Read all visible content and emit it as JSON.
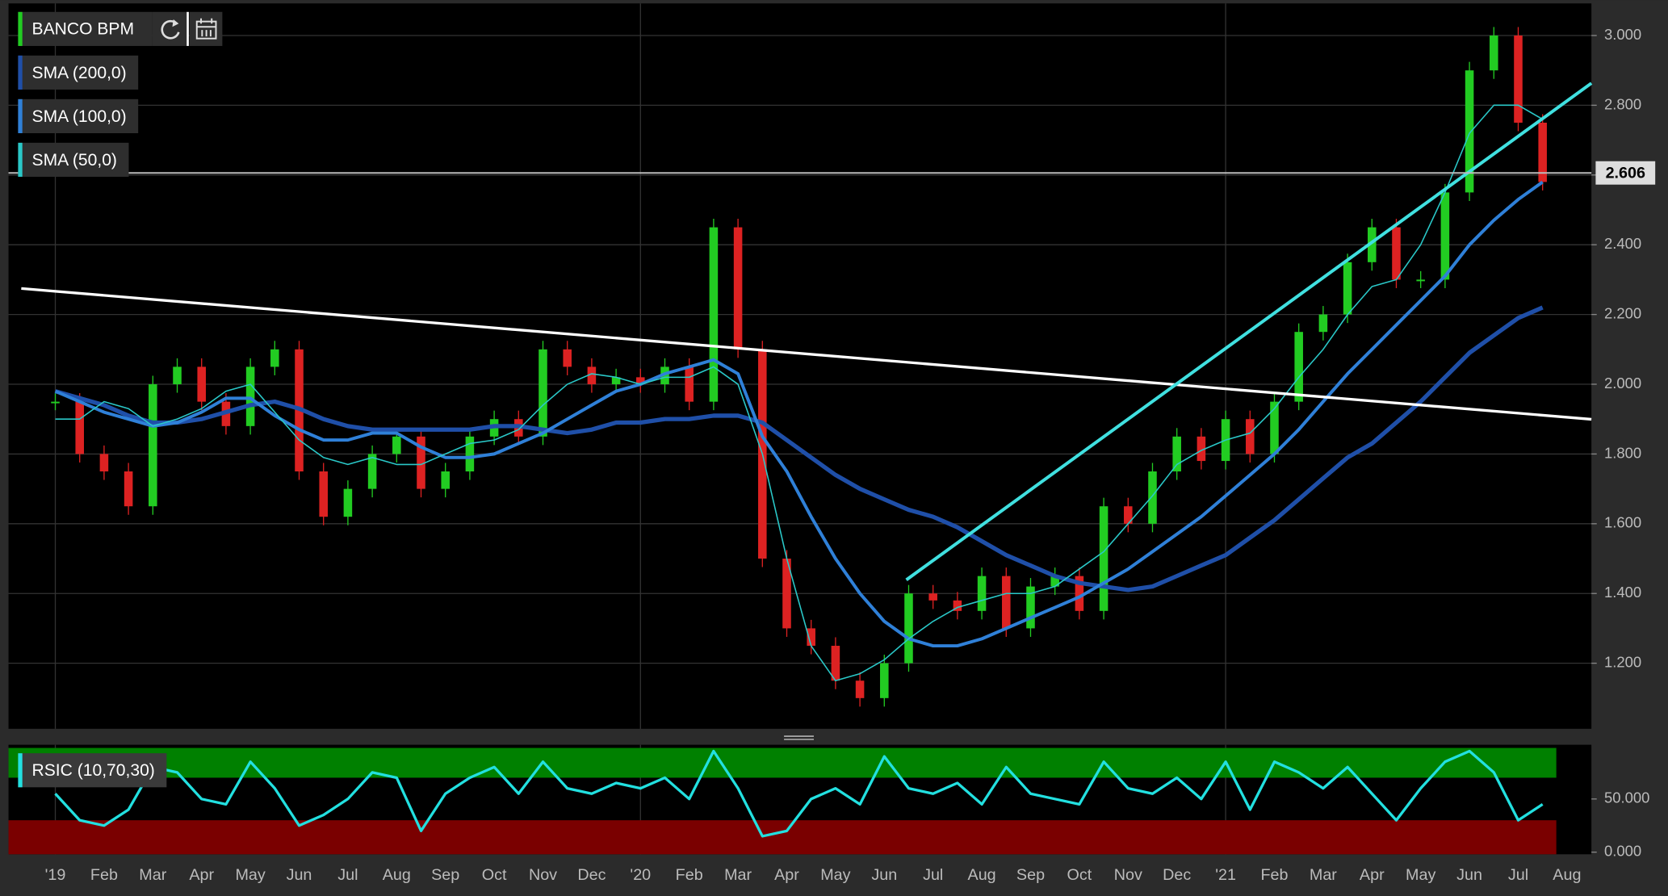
{
  "chart_data": [
    {
      "type": "candlestick",
      "title": "BANCO BPM",
      "categories": [
        "'19",
        null,
        "Feb",
        null,
        "Mar",
        null,
        "Apr",
        null,
        "May",
        null,
        "Jun",
        null,
        "Jul",
        null,
        "Aug",
        null,
        "Sep",
        null,
        "Oct",
        null,
        "Nov",
        null,
        "Dec",
        null,
        "'20",
        null,
        "Feb",
        null,
        "Mar",
        null,
        "Apr",
        null,
        "May",
        null,
        "Jun",
        null,
        "Jul",
        null,
        "Aug",
        null,
        "Sep",
        null,
        "Oct",
        null,
        "Nov",
        null,
        "Dec",
        null,
        "'21",
        null,
        "Feb",
        null,
        "Mar",
        null,
        "Apr",
        null,
        "May",
        null,
        "Jun",
        null,
        "Jul",
        null,
        "Aug"
      ],
      "series": [
        {
          "name": "BANCO BPM",
          "color": "#22cc22",
          "down_color": "#dd2222",
          "values": [
            1.95,
            1.8,
            1.75,
            1.65,
            2.0,
            2.05,
            1.95,
            1.88,
            2.05,
            2.1,
            1.75,
            1.62,
            1.7,
            1.8,
            1.85,
            1.7,
            1.75,
            1.85,
            1.9,
            1.85,
            2.1,
            2.05,
            2.0,
            2.02,
            2.0,
            2.05,
            1.95,
            2.45,
            2.1,
            1.5,
            1.3,
            1.25,
            1.15,
            1.1,
            1.2,
            1.4,
            1.38,
            1.35,
            1.45,
            1.3,
            1.42,
            1.45,
            1.35,
            1.65,
            1.6,
            1.75,
            1.85,
            1.78,
            1.9,
            1.8,
            1.95,
            2.15,
            2.2,
            2.35,
            2.45,
            2.3,
            2.3,
            2.55,
            2.9,
            3.0,
            2.75,
            2.58,
            null
          ]
        },
        {
          "name": "SMA (200,0)",
          "color": "#1f4fa8",
          "values": [
            1.98,
            1.96,
            1.94,
            1.91,
            1.89,
            1.89,
            1.9,
            1.92,
            1.94,
            1.95,
            1.93,
            1.9,
            1.88,
            1.87,
            1.87,
            1.87,
            1.87,
            1.87,
            1.88,
            1.88,
            1.87,
            1.86,
            1.87,
            1.89,
            1.89,
            1.9,
            1.9,
            1.91,
            1.91,
            1.89,
            1.84,
            1.79,
            1.74,
            1.7,
            1.67,
            1.64,
            1.62,
            1.59,
            1.55,
            1.51,
            1.48,
            1.45,
            1.43,
            1.42,
            1.41,
            1.42,
            1.45,
            1.48,
            1.51,
            1.56,
            1.61,
            1.67,
            1.73,
            1.79,
            1.83,
            1.89,
            1.95,
            2.02,
            2.09,
            2.14,
            2.19,
            2.22,
            null
          ]
        },
        {
          "name": "SMA (100,0)",
          "color": "#2f80d8",
          "values": [
            1.98,
            1.95,
            1.92,
            1.9,
            1.88,
            1.89,
            1.92,
            1.96,
            1.96,
            1.91,
            1.87,
            1.84,
            1.84,
            1.86,
            1.86,
            1.82,
            1.79,
            1.79,
            1.8,
            1.83,
            1.86,
            1.9,
            1.94,
            1.98,
            2.0,
            2.03,
            2.05,
            2.07,
            2.03,
            1.85,
            1.75,
            1.62,
            1.5,
            1.4,
            1.32,
            1.27,
            1.25,
            1.25,
            1.27,
            1.3,
            1.33,
            1.36,
            1.39,
            1.43,
            1.47,
            1.52,
            1.57,
            1.62,
            1.68,
            1.74,
            1.8,
            1.87,
            1.95,
            2.03,
            2.1,
            2.17,
            2.24,
            2.31,
            2.4,
            2.47,
            2.53,
            2.58,
            null
          ]
        },
        {
          "name": "SMA (50,0)",
          "color": "#2ac8c8",
          "values": [
            1.9,
            1.9,
            1.95,
            1.93,
            1.88,
            1.9,
            1.93,
            1.98,
            2.0,
            1.92,
            1.84,
            1.79,
            1.77,
            1.79,
            1.77,
            1.77,
            1.8,
            1.83,
            1.84,
            1.87,
            1.94,
            2.0,
            2.03,
            2.02,
            2.0,
            2.02,
            2.02,
            2.05,
            2.0,
            1.8,
            1.5,
            1.25,
            1.15,
            1.17,
            1.21,
            1.27,
            1.32,
            1.36,
            1.38,
            1.4,
            1.4,
            1.42,
            1.47,
            1.52,
            1.6,
            1.68,
            1.77,
            1.81,
            1.84,
            1.86,
            1.93,
            2.02,
            2.1,
            2.2,
            2.28,
            2.3,
            2.4,
            2.55,
            2.72,
            2.8,
            2.8,
            2.76,
            null
          ]
        }
      ],
      "last_value": 2.606,
      "ylim": [
        1.012,
        3.092
      ],
      "yticks": [
        {
          "value": 1.2,
          "label": "1.200"
        },
        {
          "value": 1.4,
          "label": "1.400"
        },
        {
          "value": 1.6,
          "label": "1.600"
        },
        {
          "value": 1.8,
          "label": "1.800"
        },
        {
          "value": 2.0,
          "label": "2.000"
        },
        {
          "value": 2.2,
          "label": "2.200"
        },
        {
          "value": 2.4,
          "label": "2.400"
        },
        {
          "value": 2.6,
          "label": "2.600"
        },
        {
          "value": 2.8,
          "label": "2.800"
        },
        {
          "value": 3.0,
          "label": "3.000"
        }
      ],
      "grid": true
    },
    {
      "type": "line",
      "title": "RSIC (10,70,30)",
      "series": [
        {
          "name": "RSIC (10,70,30)",
          "color": "#22e0e0",
          "values": [
            55,
            30,
            25,
            40,
            80,
            75,
            50,
            45,
            85,
            60,
            25,
            35,
            50,
            75,
            70,
            20,
            55,
            70,
            80,
            55,
            85,
            60,
            55,
            65,
            60,
            70,
            50,
            95,
            60,
            15,
            20,
            50,
            60,
            45,
            90,
            60,
            55,
            65,
            45,
            80,
            55,
            50,
            45,
            85,
            60,
            55,
            70,
            50,
            85,
            40,
            85,
            75,
            60,
            80,
            55,
            30,
            60,
            85,
            95,
            75,
            30,
            45,
            null
          ]
        }
      ],
      "upper_band": 70,
      "lower_band": 30,
      "ylim": [
        -2,
        101
      ],
      "yticks": [
        {
          "value": 0,
          "label": "0.000"
        },
        {
          "value": 50,
          "label": "50.000"
        }
      ]
    }
  ]
}
